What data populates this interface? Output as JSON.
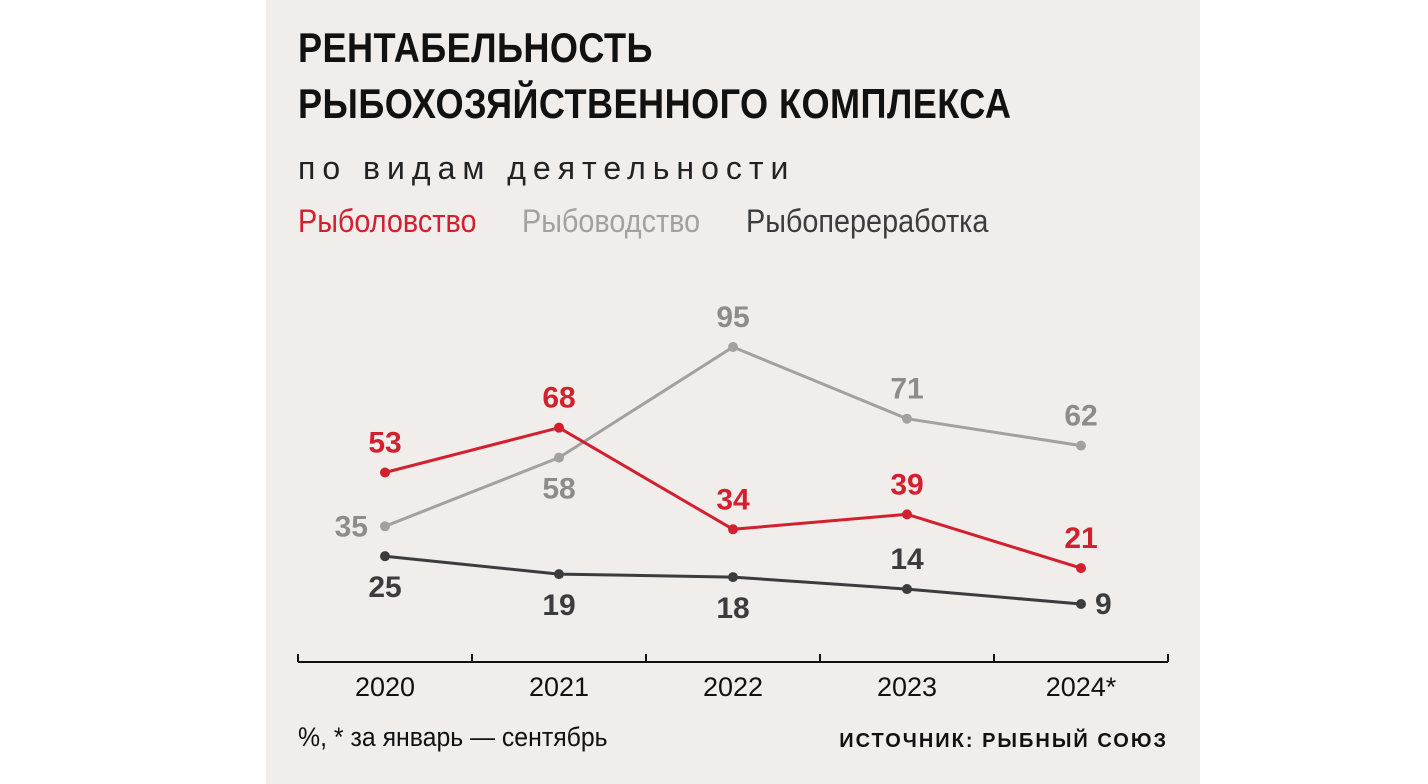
{
  "title_line1": "РЕНТАБЕЛЬНОСТЬ",
  "title_line2": "РЫБОХОЗЯЙСТВЕННОГО КОМПЛЕКСА",
  "subtitle": "по видам деятельности",
  "footnote": "%, * за январь — сентябрь",
  "source": "ИСТОЧНИК: РЫБНЫЙ СОЮЗ",
  "chart_data": {
    "type": "line",
    "categories": [
      "2020",
      "2021",
      "2022",
      "2023",
      "2024*"
    ],
    "series": [
      {
        "name": "Рыболовство",
        "color": "#d3202f",
        "values": [
          53,
          68,
          34,
          39,
          21
        ]
      },
      {
        "name": "Рыбоводство",
        "color": "#a3a09f",
        "values": [
          35,
          58,
          95,
          71,
          62
        ]
      },
      {
        "name": "Рыбопереработка",
        "color": "#3c3c3e",
        "values": [
          25,
          19,
          18,
          14,
          9
        ]
      }
    ],
    "grid": false,
    "legend_placement": "top-left"
  }
}
